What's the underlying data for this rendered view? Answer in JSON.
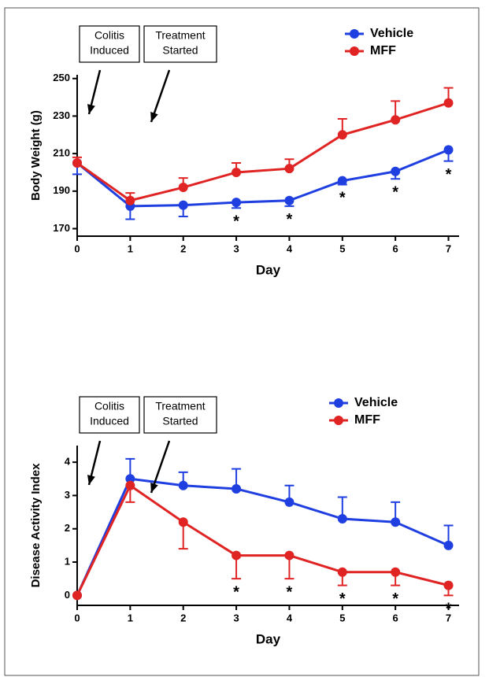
{
  "chart_data": [
    {
      "type": "line",
      "x": [
        0,
        1,
        2,
        3,
        4,
        5,
        6,
        7
      ],
      "xlim": [
        0,
        7.2
      ],
      "xticks": [
        0,
        1,
        2,
        3,
        4,
        5,
        6,
        7
      ],
      "ylim": [
        166,
        252
      ],
      "yticks": [
        170,
        190,
        210,
        230,
        250
      ],
      "x_label": "Day",
      "y_label": "Body Weight (g)",
      "legend": "upper right",
      "annotations": [
        [
          "Colitis",
          "Induced"
        ],
        [
          "Treatment",
          "Started"
        ]
      ],
      "significance": {
        "label": "*",
        "x": [
          3,
          4,
          5,
          6,
          7
        ]
      },
      "series": [
        {
          "name": "Vehicle",
          "color": "#1f3fe0",
          "values": [
            205,
            182,
            182.5,
            184,
            185,
            195.5,
            200.5,
            212
          ],
          "errors": [
            6,
            7,
            6,
            3,
            3,
            2,
            4,
            6
          ],
          "error_side": "down"
        },
        {
          "name": "MFF",
          "color": "#e02424",
          "values": [
            205,
            185,
            192,
            200,
            202,
            220,
            228,
            237
          ],
          "errors": [
            3,
            4,
            5,
            5,
            5,
            8.5,
            10,
            8
          ],
          "error_side": "up"
        }
      ]
    },
    {
      "type": "line",
      "x": [
        0,
        1,
        2,
        3,
        4,
        5,
        6,
        7
      ],
      "xlim": [
        0,
        7.2
      ],
      "xticks": [
        0,
        1,
        2,
        3,
        4,
        5,
        6,
        7
      ],
      "ylim": [
        -0.3,
        4.5
      ],
      "yticks": [
        0,
        1,
        2,
        3,
        4
      ],
      "x_label": "Day",
      "y_label": "Disease Activity Index",
      "legend": "upper right",
      "annotations": [
        [
          "Colitis",
          "Induced"
        ],
        [
          "Treatment",
          "Started"
        ]
      ],
      "significance": {
        "label": "*",
        "x": [
          3,
          4,
          5,
          6,
          7
        ]
      },
      "series": [
        {
          "name": "Vehicle",
          "color": "#1f3fe0",
          "values": [
            0,
            3.5,
            3.3,
            3.2,
            2.8,
            2.3,
            2.2,
            1.5
          ],
          "errors": [
            0,
            0.6,
            0.4,
            0.6,
            0.5,
            0.65,
            0.6,
            0.6
          ],
          "error_side": "up"
        },
        {
          "name": "MFF",
          "color": "#e02424",
          "values": [
            0,
            3.3,
            2.2,
            1.2,
            1.2,
            0.7,
            0.7,
            0.3
          ],
          "errors": [
            0,
            0.5,
            0.8,
            0.7,
            0.7,
            0.4,
            0.4,
            0.3
          ],
          "error_side": "down"
        }
      ]
    }
  ]
}
